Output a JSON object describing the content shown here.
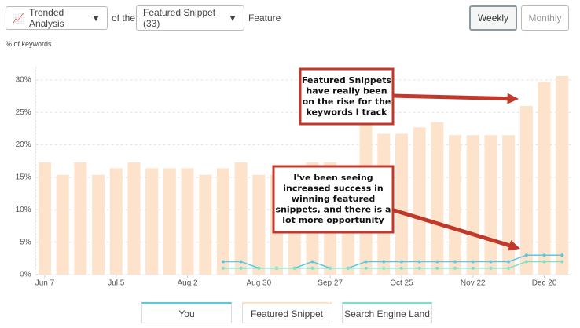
{
  "controls": {
    "view": "Trended Analysis",
    "of_the": "of the",
    "feature": "Featured Snippet (33)",
    "feature_label": "Feature",
    "periods": [
      "Weekly",
      "Monthly"
    ],
    "active_period": "Weekly"
  },
  "chart_data": {
    "type": "bar",
    "y_label": "% of keywords",
    "categories": [
      "Jun 7",
      null,
      null,
      null,
      "Jul 5",
      null,
      null,
      null,
      "Aug 2",
      null,
      null,
      null,
      "Aug 30",
      null,
      null,
      null,
      "Sep 27",
      null,
      null,
      null,
      "Oct 25",
      null,
      null,
      null,
      "Nov 22",
      null,
      null,
      null,
      "Dec 20",
      null
    ],
    "series": [
      {
        "name": "You",
        "type": "line",
        "color": "#5bc8e0",
        "values": [
          null,
          null,
          null,
          null,
          null,
          null,
          null,
          null,
          null,
          null,
          2,
          2,
          1,
          1,
          1,
          2,
          1,
          1,
          2,
          2,
          2,
          2,
          2,
          2,
          2,
          2,
          2,
          3,
          3,
          3
        ]
      },
      {
        "name": "Featured Snippet",
        "type": "bar",
        "color": "#fde3cc",
        "values": [
          17.3,
          15.4,
          17.3,
          15.4,
          16.4,
          17.3,
          16.4,
          16.4,
          16.4,
          15.4,
          16.4,
          17.3,
          15.4,
          15.4,
          16.4,
          17.3,
          17.3,
          16.4,
          23.1,
          21.7,
          21.7,
          22.7,
          23.5,
          21.5,
          21.5,
          21.5,
          21.5,
          26,
          29.7,
          30.6
        ]
      },
      {
        "name": "Search Engine Land",
        "type": "line",
        "color": "#7fe0c4",
        "values": [
          null,
          null,
          null,
          null,
          null,
          null,
          null,
          null,
          null,
          null,
          1,
          1,
          1,
          1,
          1,
          1,
          1,
          1,
          1,
          1,
          1,
          1,
          1,
          1,
          1,
          1,
          1,
          2,
          2,
          2
        ]
      }
    ],
    "ylim": [
      0,
      32
    ],
    "yticks": [
      {
        "value": 0,
        "label": "0%"
      },
      {
        "value": 5,
        "label": "5%"
      },
      {
        "value": 10,
        "label": "10%"
      },
      {
        "value": 15,
        "label": "15%"
      },
      {
        "value": 20,
        "label": "20%"
      },
      {
        "value": 25,
        "label": "25%"
      },
      {
        "value": 30,
        "label": "30%"
      }
    ],
    "grid": true,
    "annotations": [
      {
        "lines": [
          "Featured Snippets",
          "have really been",
          "on the rise for the",
          "keywords I track"
        ]
      },
      {
        "lines": [
          "I've been seeing",
          "increased success in",
          "winning featured",
          "snippets, and there is a",
          "lot more opportunity"
        ]
      }
    ]
  }
}
